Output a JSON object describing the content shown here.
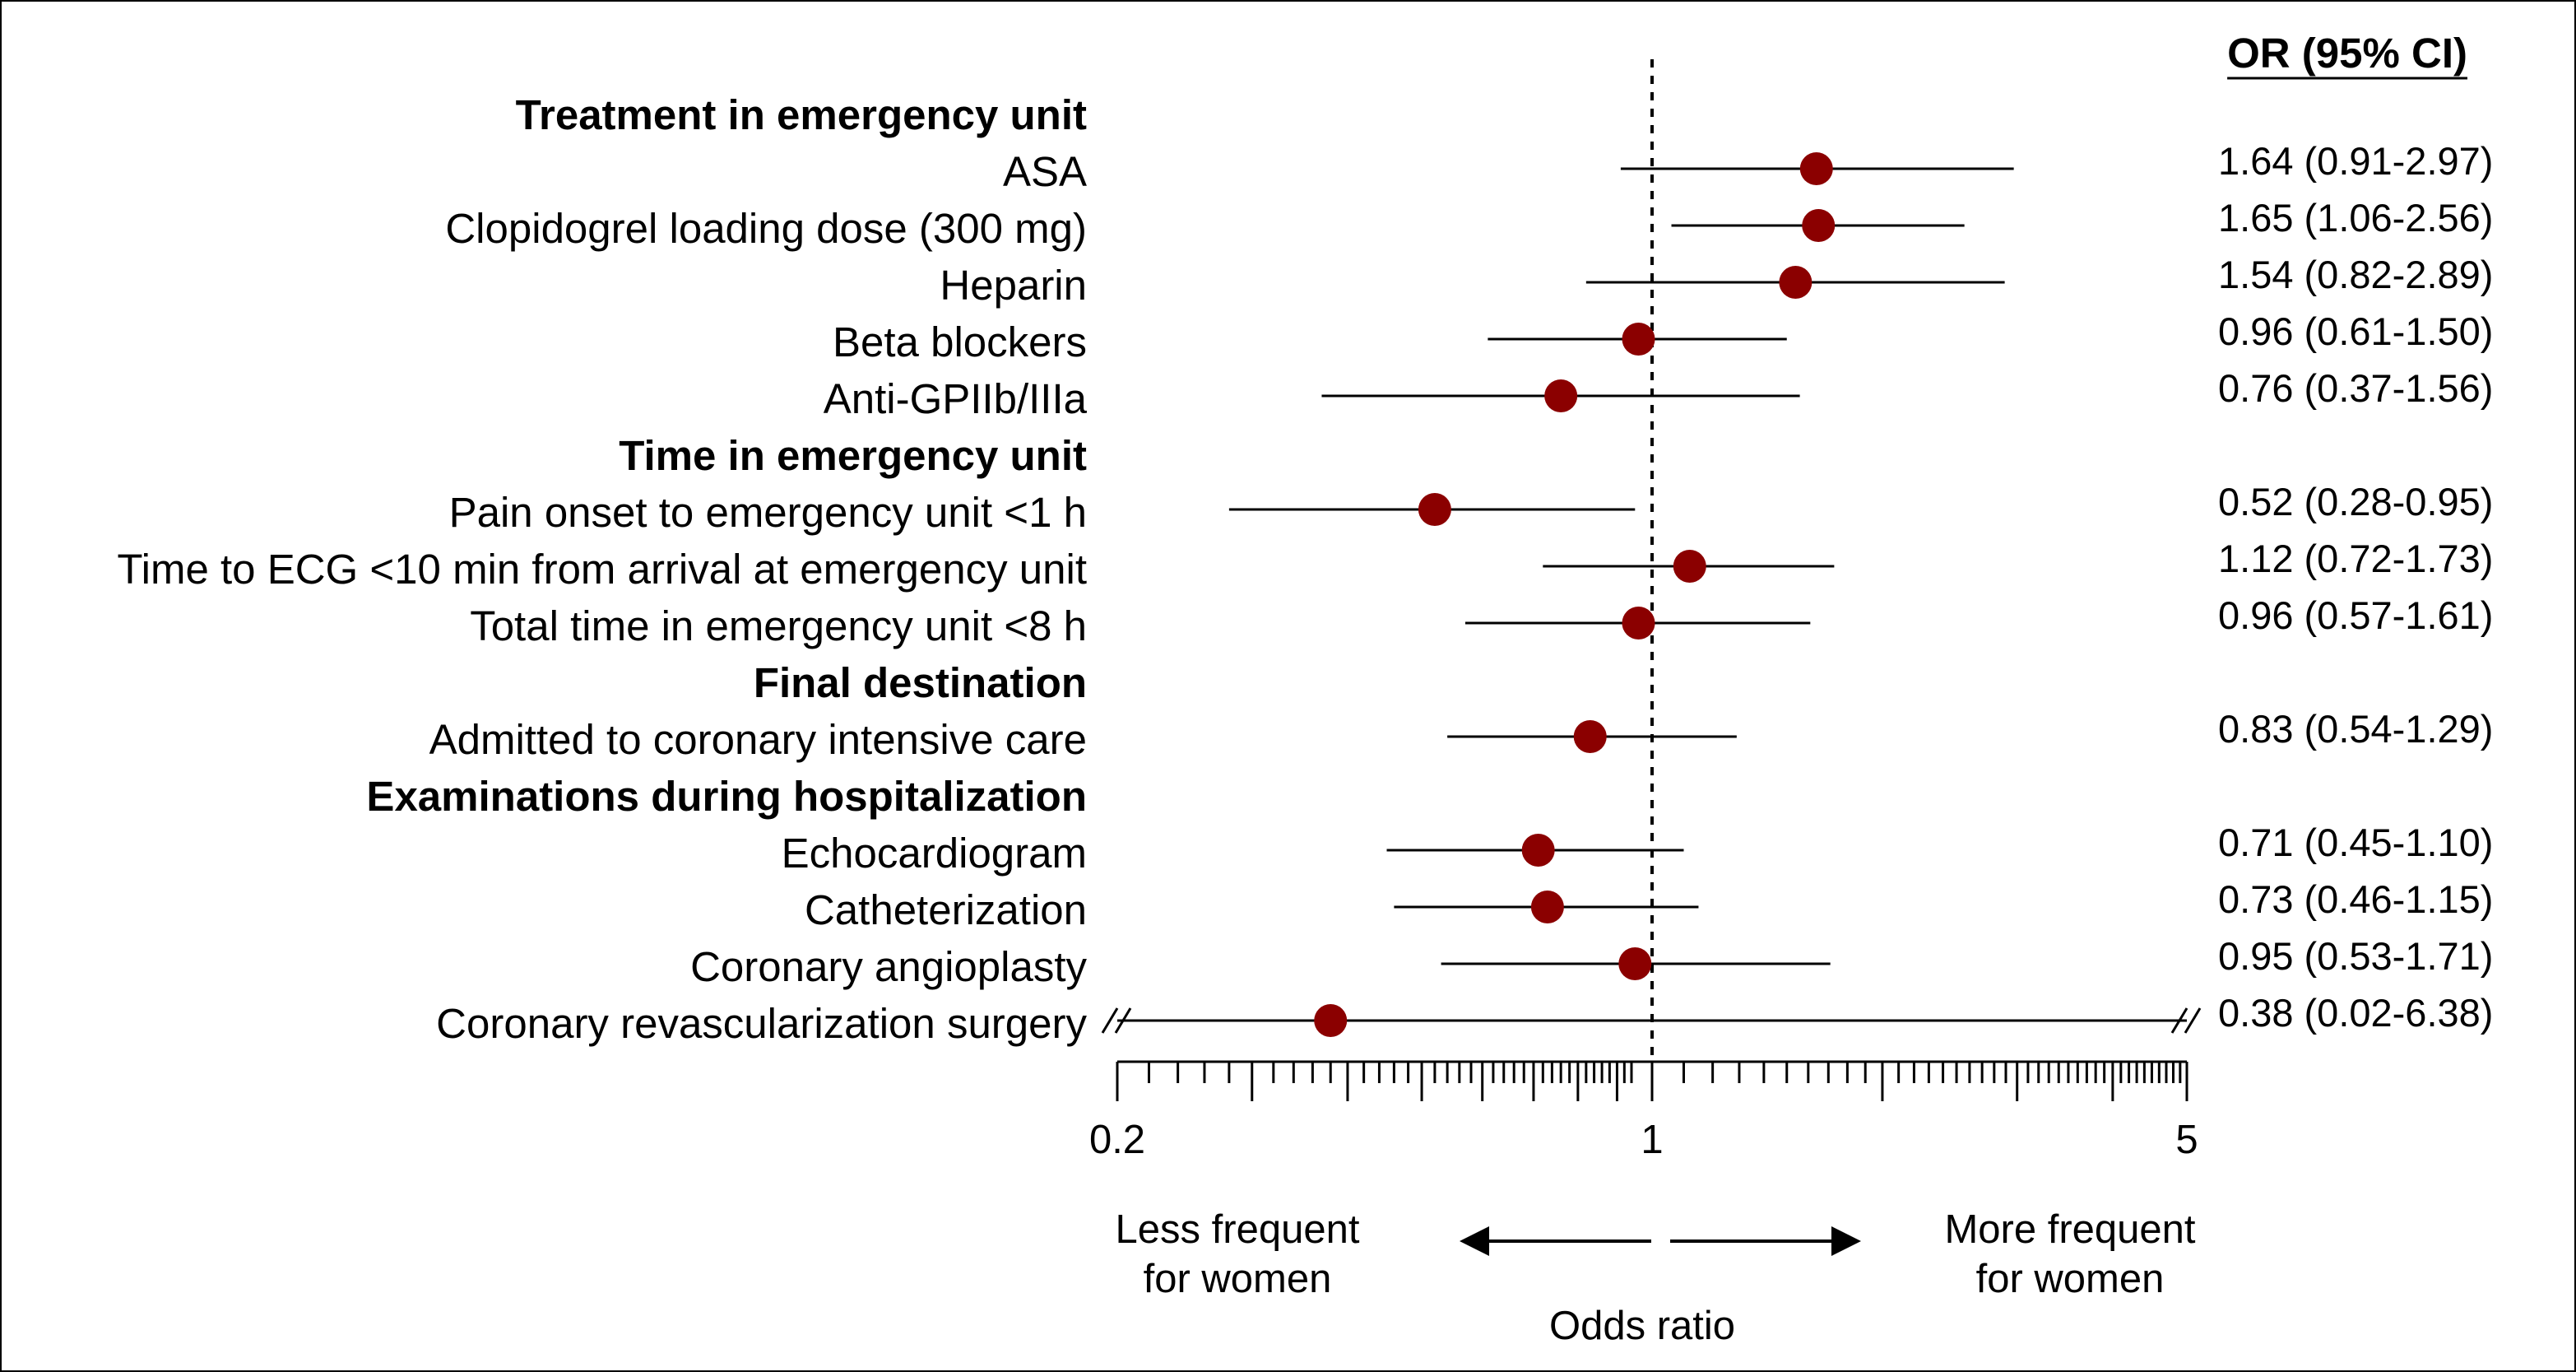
{
  "chart_data": {
    "type": "forest",
    "title": "",
    "column_header": "OR (95% CI)",
    "xlabel": "Odds ratio",
    "x_scale": "log",
    "xlim": [
      0.2,
      5
    ],
    "xticks": [
      0.2,
      1,
      5
    ],
    "xtick_labels": [
      "0.2",
      "1",
      "5"
    ],
    "reference_line": 1,
    "direction_left": [
      "Less frequent",
      "for women"
    ],
    "direction_right": [
      "More frequent",
      "for women"
    ],
    "point_color": "#8b0000",
    "rows": [
      {
        "kind": "header",
        "label": "Treatment in emergency unit"
      },
      {
        "kind": "item",
        "label": "ASA",
        "or": 1.64,
        "lo": 0.91,
        "hi": 2.97,
        "text": "1.64 (0.91-2.97)"
      },
      {
        "kind": "item",
        "label": "Clopidogrel loading dose (300 mg)",
        "or": 1.65,
        "lo": 1.06,
        "hi": 2.56,
        "text": "1.65 (1.06-2.56)"
      },
      {
        "kind": "item",
        "label": "Heparin",
        "or": 1.54,
        "lo": 0.82,
        "hi": 2.89,
        "text": "1.54 (0.82-2.89)"
      },
      {
        "kind": "item",
        "label": "Beta blockers",
        "or": 0.96,
        "lo": 0.61,
        "hi": 1.5,
        "text": "0.96 (0.61-1.50)"
      },
      {
        "kind": "item",
        "label": "Anti-GPIIb/IIIa",
        "or": 0.76,
        "lo": 0.37,
        "hi": 1.56,
        "text": "0.76 (0.37-1.56)"
      },
      {
        "kind": "header",
        "label": "Time in emergency unit"
      },
      {
        "kind": "item",
        "label": "Pain onset to emergency unit <1 h",
        "or": 0.52,
        "lo": 0.28,
        "hi": 0.95,
        "text": "0.52 (0.28-0.95)"
      },
      {
        "kind": "item",
        "label": "Time to ECG <10 min from arrival at emergency unit",
        "or": 1.12,
        "lo": 0.72,
        "hi": 1.73,
        "text": "1.12 (0.72-1.73)"
      },
      {
        "kind": "item",
        "label": "Total time in emergency unit <8 h",
        "or": 0.96,
        "lo": 0.57,
        "hi": 1.61,
        "text": "0.96 (0.57-1.61)"
      },
      {
        "kind": "header",
        "label": "Final destination"
      },
      {
        "kind": "item",
        "label": "Admitted to coronary intensive care",
        "or": 0.83,
        "lo": 0.54,
        "hi": 1.29,
        "text": "0.83 (0.54-1.29)"
      },
      {
        "kind": "header",
        "label": "Examinations during hospitalization"
      },
      {
        "kind": "item",
        "label": "Echocardiogram",
        "or": 0.71,
        "lo": 0.45,
        "hi": 1.1,
        "text": "0.71 (0.45-1.10)"
      },
      {
        "kind": "item",
        "label": "Catheterization",
        "or": 0.73,
        "lo": 0.46,
        "hi": 1.15,
        "text": "0.73 (0.46-1.15)"
      },
      {
        "kind": "item",
        "label": "Coronary angioplasty",
        "or": 0.95,
        "lo": 0.53,
        "hi": 1.71,
        "text": "0.95 (0.53-1.71)"
      },
      {
        "kind": "item",
        "label": "Coronary revascularization surgery",
        "or": 0.38,
        "lo": 0.02,
        "hi": 6.38,
        "text": "0.38 (0.02-6.38)",
        "truncated": true
      }
    ]
  }
}
